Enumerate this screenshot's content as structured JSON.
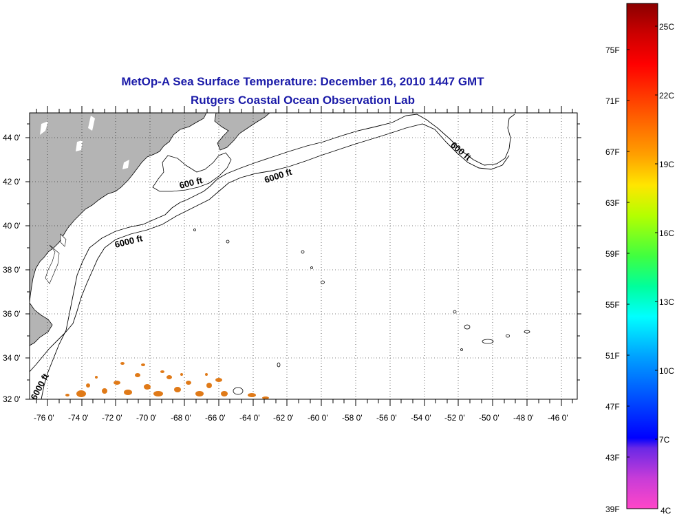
{
  "title": {
    "line1": "MetOp-A Sea Surface Temperature:  December 16, 2010 1447 GMT",
    "line2": "Rutgers Coastal Ocean Observation Lab"
  },
  "map": {
    "lon_range": [
      -77,
      -45
    ],
    "lat_range": [
      32,
      45
    ],
    "lon_labels": [
      "-76 0'",
      "-74 0'",
      "-72 0'",
      "-70 0'",
      "-68 0'",
      "-66 0'",
      "-64 0'",
      "-62 0'",
      "-60 0'",
      "-58 0'",
      "-56 0'",
      "-54 0'",
      "-52 0'",
      "-50 0'",
      "-48 0'",
      "-46 0'"
    ],
    "lat_labels": [
      "44 0'",
      "42 0'",
      "40 0'",
      "38 0'",
      "36 0'",
      "34 0'",
      "32 0'"
    ],
    "land_color": "#b4b4b4",
    "grid": true,
    "contour_labels": [
      "600 ft",
      "6000 ft",
      "6000 ft",
      "600 ft",
      "6000 ft"
    ]
  },
  "colorbar": {
    "fahrenheit": [
      "75F",
      "71F",
      "67F",
      "63F",
      "59F",
      "55F",
      "51F",
      "47F",
      "43F",
      "39F"
    ],
    "celsius": [
      "25C",
      "22C",
      "19C",
      "16C",
      "13C",
      "10C",
      "7C",
      "4C"
    ]
  }
}
